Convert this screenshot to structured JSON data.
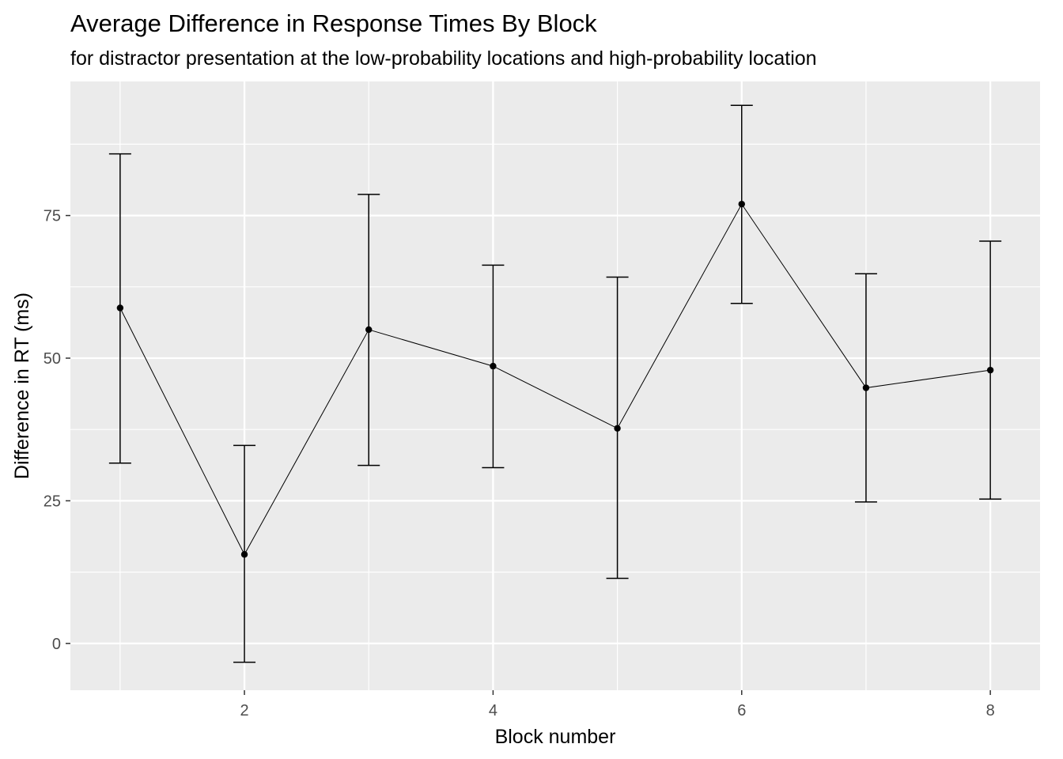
{
  "chart_data": {
    "type": "line",
    "title": "Average Difference in Response Times By Block",
    "subtitle": "for distractor presentation at the low-probability locations and high-probability location",
    "xlabel": "Block number",
    "ylabel": "Difference in RT (ms)",
    "xlim": [
      0.6,
      8.4
    ],
    "ylim": [
      -8.2,
      98.5
    ],
    "x_ticks": [
      2,
      4,
      6,
      8
    ],
    "y_ticks": [
      0,
      25,
      50,
      75
    ],
    "grid": true,
    "legend": "none",
    "points": [
      {
        "x": 1,
        "y": 58.8,
        "ymin": 31.6,
        "ymax": 85.8
      },
      {
        "x": 2,
        "y": 15.6,
        "ymin": -3.3,
        "ymax": 34.7
      },
      {
        "x": 3,
        "y": 55.0,
        "ymin": 31.2,
        "ymax": 78.7
      },
      {
        "x": 4,
        "y": 48.6,
        "ymin": 30.8,
        "ymax": 66.3
      },
      {
        "x": 5,
        "y": 37.7,
        "ymin": 11.4,
        "ymax": 64.2
      },
      {
        "x": 6,
        "y": 77.0,
        "ymin": 59.6,
        "ymax": 94.3
      },
      {
        "x": 7,
        "y": 44.8,
        "ymin": 24.8,
        "ymax": 64.8
      },
      {
        "x": 8,
        "y": 47.9,
        "ymin": 25.3,
        "ymax": 70.5
      }
    ],
    "colors": {
      "panel": "#ebebeb",
      "grid": "#ffffff",
      "line": "#000000",
      "tick_text": "#4d4d4d"
    }
  }
}
